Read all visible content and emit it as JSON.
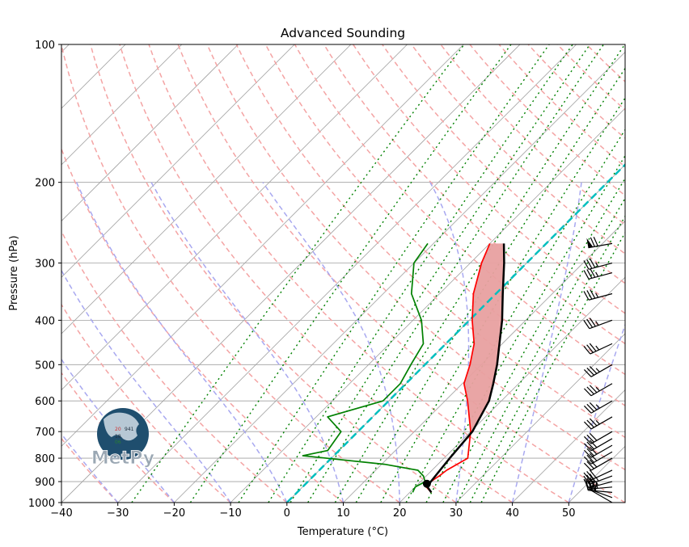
{
  "chart_data": {
    "type": "skew-t",
    "title": "Advanced Sounding",
    "xlabel": "Temperature (°C)",
    "ylabel": "Pressure (hPa)",
    "xlim": [
      -40,
      60
    ],
    "ylim": [
      1000,
      100
    ],
    "x_ticks": [
      -40,
      -30,
      -20,
      -10,
      0,
      10,
      20,
      30,
      40,
      50
    ],
    "y_ticks": [
      100,
      200,
      300,
      400,
      500,
      600,
      700,
      800,
      900,
      1000
    ],
    "y_scale": "log",
    "grid": true,
    "colors": {
      "temperature": "#ff0000",
      "dewpoint": "#008000",
      "parcel_profile": "#000000",
      "cape_fill": "#e8a0a0",
      "zero_isotherm": "#00bfbf",
      "dry_adiabats": "#f4a4a4",
      "moist_adiabats": "#a8a8f0",
      "mixing_ratio": "#008000",
      "isobars_isotherms": "#a0a0a0"
    },
    "series": [
      {
        "key": "temperature",
        "points": [
          [
            23.8,
            950
          ],
          [
            22.0,
            925
          ],
          [
            21.8,
            900
          ],
          [
            22.3,
            875
          ],
          [
            22.6,
            850
          ],
          [
            24.2,
            800
          ],
          [
            20.0,
            700
          ],
          [
            14.0,
            600
          ],
          [
            10.3,
            550
          ],
          [
            8.0,
            500
          ],
          [
            5.0,
            450
          ],
          [
            0.5,
            400
          ],
          [
            -4.0,
            350
          ],
          [
            -8.0,
            300
          ],
          [
            -10.0,
            272
          ]
        ]
      },
      {
        "key": "dewpoint",
        "points": [
          [
            20.5,
            950
          ],
          [
            20.0,
            925
          ],
          [
            20.8,
            900
          ],
          [
            19.5,
            875
          ],
          [
            17.5,
            850
          ],
          [
            10.5,
            825
          ],
          [
            -5.5,
            790
          ],
          [
            -2.0,
            770
          ],
          [
            -3.0,
            700
          ],
          [
            -8.0,
            650
          ],
          [
            -1.0,
            600
          ],
          [
            -1.0,
            550
          ],
          [
            -2.5,
            500
          ],
          [
            -4.0,
            450
          ],
          [
            -8.5,
            400
          ],
          [
            -15.0,
            350
          ],
          [
            -20.0,
            300
          ],
          [
            -21.0,
            272
          ]
        ]
      },
      {
        "key": "parcel_profile",
        "points": [
          [
            23.8,
            950
          ],
          [
            22.2,
            925
          ],
          [
            21.8,
            900
          ],
          [
            21.0,
            800
          ],
          [
            20.3,
            700
          ],
          [
            17.8,
            600
          ],
          [
            15.5,
            550
          ],
          [
            12.8,
            500
          ],
          [
            9.5,
            450
          ],
          [
            5.8,
            400
          ],
          [
            1.2,
            350
          ],
          [
            -4.0,
            300
          ],
          [
            -7.5,
            272
          ]
        ]
      }
    ],
    "surface_parcel_marker": {
      "temperature": 21.5,
      "pressure": 910
    },
    "cape_pressure_range": [
      272,
      725
    ],
    "wind_barbs": [
      {
        "pressure": 1000,
        "direction_deg": 300,
        "speed_kt": 20
      },
      {
        "pressure": 975,
        "direction_deg": 290,
        "speed_kt": 25
      },
      {
        "pressure": 950,
        "direction_deg": 275,
        "speed_kt": 30
      },
      {
        "pressure": 925,
        "direction_deg": 265,
        "speed_kt": 35
      },
      {
        "pressure": 900,
        "direction_deg": 255,
        "speed_kt": 35
      },
      {
        "pressure": 875,
        "direction_deg": 250,
        "speed_kt": 35
      },
      {
        "pressure": 850,
        "direction_deg": 245,
        "speed_kt": 30
      },
      {
        "pressure": 800,
        "direction_deg": 240,
        "speed_kt": 30
      },
      {
        "pressure": 775,
        "direction_deg": 240,
        "speed_kt": 30
      },
      {
        "pressure": 750,
        "direction_deg": 240,
        "speed_kt": 30
      },
      {
        "pressure": 725,
        "direction_deg": 240,
        "speed_kt": 30
      },
      {
        "pressure": 700,
        "direction_deg": 240,
        "speed_kt": 30
      },
      {
        "pressure": 650,
        "direction_deg": 240,
        "speed_kt": 35
      },
      {
        "pressure": 600,
        "direction_deg": 240,
        "speed_kt": 35
      },
      {
        "pressure": 550,
        "direction_deg": 240,
        "speed_kt": 35
      },
      {
        "pressure": 500,
        "direction_deg": 240,
        "speed_kt": 35
      },
      {
        "pressure": 450,
        "direction_deg": 245,
        "speed_kt": 35
      },
      {
        "pressure": 400,
        "direction_deg": 250,
        "speed_kt": 35
      },
      {
        "pressure": 350,
        "direction_deg": 255,
        "speed_kt": 35
      },
      {
        "pressure": 315,
        "direction_deg": 255,
        "speed_kt": 35
      },
      {
        "pressure": 300,
        "direction_deg": 255,
        "speed_kt": 35
      },
      {
        "pressure": 272,
        "direction_deg": 260,
        "speed_kt": 70
      }
    ],
    "logo": {
      "text": "MetPy",
      "digits": [
        "20",
        "941",
        "18",
        "06"
      ],
      "colors": {
        "globe": "#1f4e6e",
        "land": "#c8d6e0",
        "text": "#9aa7b3"
      }
    }
  }
}
